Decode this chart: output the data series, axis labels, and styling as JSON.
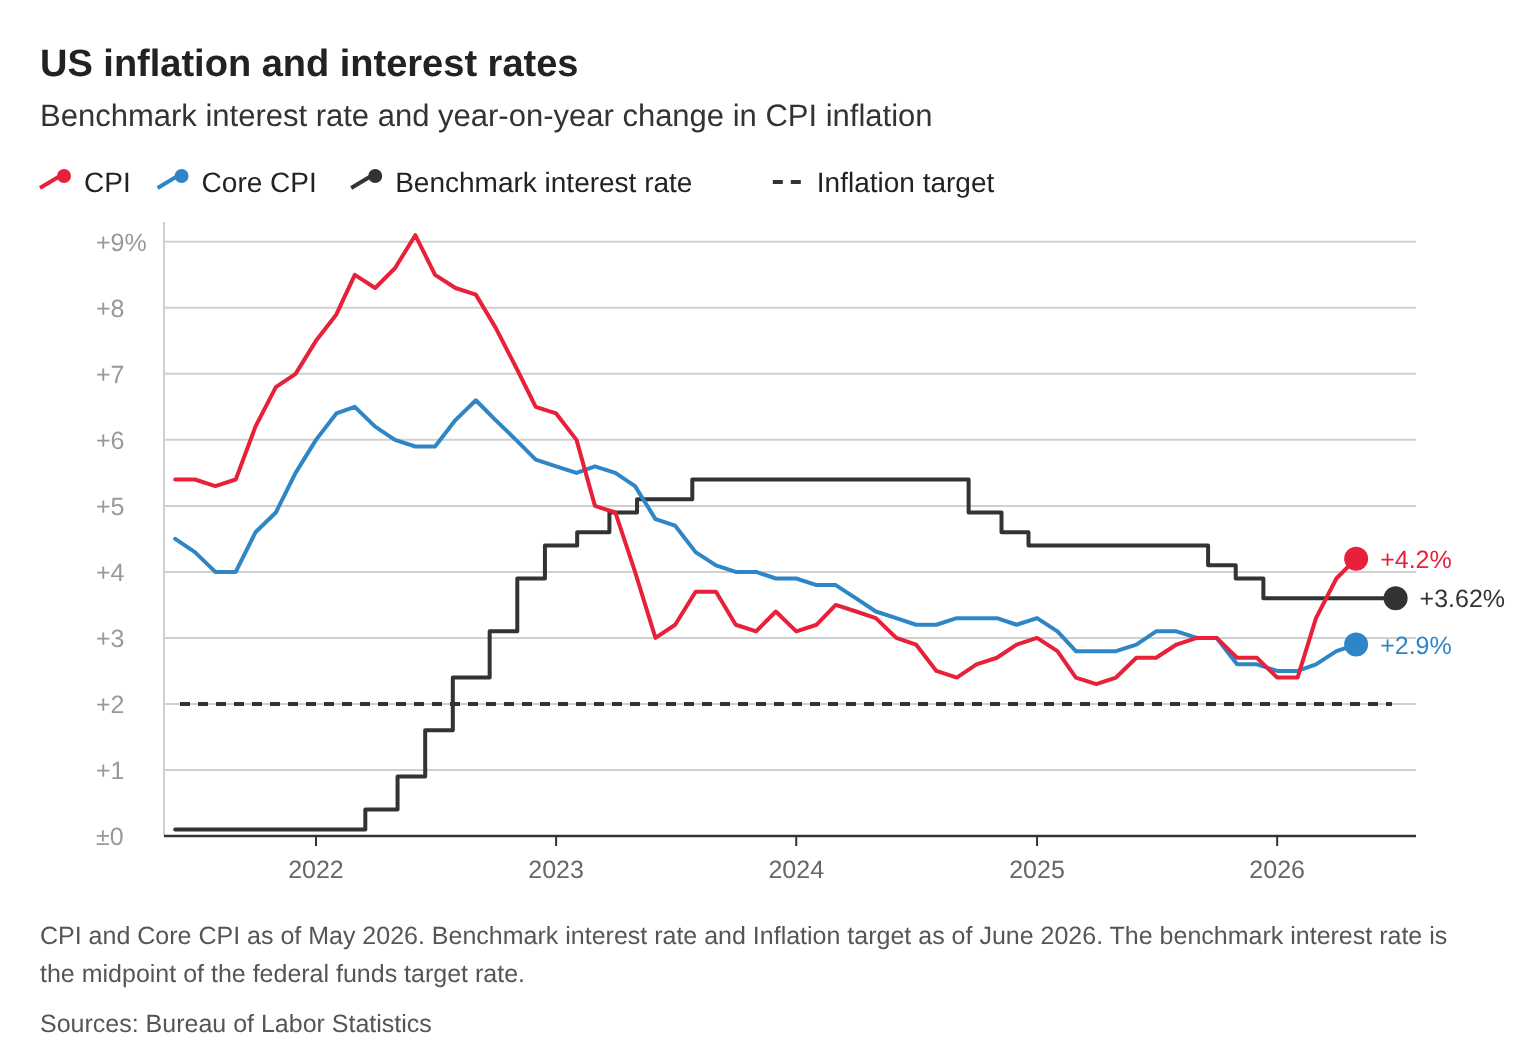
{
  "chart_data": {
    "type": "line",
    "title": "US inflation and interest rates",
    "subtitle": "Benchmark interest rate and year-on-year change in CPI inflation",
    "x": [
      "2021-06",
      "2021-07",
      "2021-08",
      "2021-09",
      "2021-10",
      "2021-11",
      "2021-12",
      "2022-01",
      "2022-02",
      "2022-03",
      "2022-04",
      "2022-05",
      "2022-06",
      "2022-07",
      "2022-08",
      "2022-09",
      "2022-10",
      "2022-11",
      "2022-12",
      "2023-01",
      "2023-02",
      "2023-03",
      "2023-04",
      "2023-05",
      "2023-06",
      "2023-07",
      "2023-08",
      "2023-09",
      "2023-10",
      "2023-11",
      "2023-12",
      "2024-01",
      "2024-02",
      "2024-03",
      "2024-04",
      "2024-05",
      "2024-06",
      "2024-07",
      "2024-08",
      "2024-09",
      "2024-10",
      "2024-11",
      "2024-12",
      "2025-01",
      "2025-02",
      "2025-03",
      "2025-04",
      "2025-05",
      "2025-06",
      "2025-07",
      "2025-08",
      "2025-09",
      "2025-10",
      "2025-11",
      "2025-12",
      "2026-01",
      "2026-02",
      "2026-03",
      "2026-04",
      "2026-05"
    ],
    "series": [
      {
        "name": "CPI",
        "color": "#e8203a",
        "values": [
          5.4,
          5.4,
          5.3,
          5.4,
          6.2,
          6.8,
          7.0,
          7.5,
          7.9,
          8.5,
          8.3,
          8.6,
          9.1,
          8.5,
          8.3,
          8.2,
          7.7,
          7.1,
          6.5,
          6.4,
          6.0,
          5.0,
          4.9,
          4.0,
          3.0,
          3.2,
          3.7,
          3.7,
          3.2,
          3.1,
          3.4,
          3.1,
          3.2,
          3.5,
          3.4,
          3.3,
          3.0,
          2.9,
          2.5,
          2.4,
          2.6,
          2.7,
          2.9,
          3.0,
          2.8,
          2.4,
          2.3,
          2.4,
          2.7,
          2.7,
          2.9,
          3.0,
          3.0,
          2.7,
          2.7,
          2.4,
          2.4,
          3.3,
          3.9,
          4.2
        ]
      },
      {
        "name": "Core CPI",
        "color": "#2f86c6",
        "values": [
          4.5,
          4.3,
          4.0,
          4.0,
          4.6,
          4.9,
          5.5,
          6.0,
          6.4,
          6.5,
          6.2,
          6.0,
          5.9,
          5.9,
          6.3,
          6.6,
          6.3,
          6.0,
          5.7,
          5.6,
          5.5,
          5.6,
          5.5,
          5.3,
          4.8,
          4.7,
          4.3,
          4.1,
          4.0,
          4.0,
          3.9,
          3.9,
          3.8,
          3.8,
          3.6,
          3.4,
          3.3,
          3.2,
          3.2,
          3.3,
          3.3,
          3.3,
          3.2,
          3.3,
          3.1,
          2.8,
          2.8,
          2.8,
          2.9,
          3.1,
          3.1,
          3.0,
          3.0,
          2.6,
          2.6,
          2.5,
          2.5,
          2.6,
          2.8,
          2.9
        ]
      },
      {
        "name": "Benchmark interest rate",
        "type": "step",
        "color": "#333333",
        "x": [
          "2021-06-01",
          "2022-03-17",
          "2022-05-05",
          "2022-06-16",
          "2022-07-28",
          "2022-09-22",
          "2022-11-03",
          "2022-12-15",
          "2023-02-02",
          "2023-03-23",
          "2023-05-04",
          "2023-07-27",
          "2024-09-19",
          "2024-11-08",
          "2024-12-19",
          "2025-09-18",
          "2025-10-30",
          "2025-12-11",
          "2026-06-30"
        ],
        "values": [
          0.1,
          0.4,
          0.9,
          1.6,
          2.4,
          3.1,
          3.9,
          4.4,
          4.6,
          4.9,
          5.1,
          5.4,
          4.9,
          4.6,
          4.4,
          4.1,
          3.9,
          3.6,
          3.6
        ]
      }
    ],
    "ref_lines": [
      {
        "axis": "y",
        "value": 2,
        "label": "Inflation target",
        "color": "#333333",
        "line_style": "dashed"
      }
    ],
    "xlim": [
      "2021-05-15",
      "2026-07-31"
    ],
    "xticks": [
      "2022",
      "2023",
      "2024",
      "2025",
      "2026"
    ],
    "ylim": [
      0,
      9.3
    ],
    "yticks": [
      {
        "value": 0,
        "label": "±0"
      },
      {
        "value": 1,
        "label": "+1"
      },
      {
        "value": 2,
        "label": "+2"
      },
      {
        "value": 3,
        "label": "+3"
      },
      {
        "value": 4,
        "label": "+4"
      },
      {
        "value": 5,
        "label": "+5"
      },
      {
        "value": 6,
        "label": "+6"
      },
      {
        "value": 7,
        "label": "+7"
      },
      {
        "value": 8,
        "label": "+8"
      },
      {
        "value": 9,
        "label": "+9%"
      }
    ],
    "grid": "y",
    "legend": "top left",
    "annotations": [
      {
        "text": "+4.2%",
        "x": "2026-05",
        "y": 4.2
      },
      {
        "text": "+3.62%",
        "x": "2026-06-30",
        "y": 3.6
      },
      {
        "text": "+2.9%",
        "x": "2026-05",
        "y": 2.9
      },
      "CPI and Core CPI as of May 2026. Benchmark interest rate and Inflation target as of June 2026. The benchmark interest rate is the midpoint of the federal funds target rate.",
      "Sources: Bureau of Labor Statistics"
    ]
  }
}
